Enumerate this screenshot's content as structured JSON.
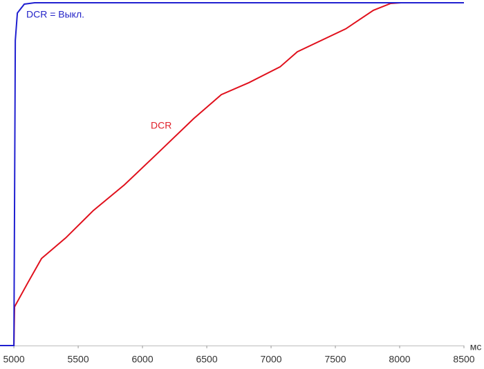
{
  "chart_data": {
    "type": "line",
    "x_label": "мс",
    "xlim": [
      4892,
      8500
    ],
    "xticks": [
      5000,
      5500,
      6000,
      6500,
      7000,
      7500,
      8000,
      8500
    ],
    "ylim": [
      0,
      100
    ],
    "annotations": [
      {
        "text": "DCR = Выкл.",
        "color": "#2323c8"
      },
      {
        "text": "DCR",
        "color": "#e0202a"
      }
    ],
    "series": [
      {
        "name": "DCR = Выкл.",
        "color": "#1f1fd0",
        "x": [
          4892,
          5000,
          5005,
          5011,
          5027,
          5081,
          5161,
          8500
        ],
        "values": [
          0,
          0,
          40,
          89,
          97,
          99.6,
          100,
          100
        ]
      },
      {
        "name": "DCR",
        "color": "#e0101c",
        "x": [
          4892,
          5000,
          5005,
          5108,
          5215,
          5403,
          5618,
          5860,
          6129,
          6398,
          6613,
          6828,
          7070,
          7204,
          7581,
          7796,
          7930,
          8011,
          8500
        ],
        "values": [
          0,
          0,
          11.3,
          18.3,
          25.4,
          31.4,
          39.4,
          46.9,
          56.5,
          66.2,
          73.2,
          76.7,
          81.3,
          85.7,
          92.4,
          97.8,
          99.8,
          100,
          100
        ]
      }
    ]
  }
}
